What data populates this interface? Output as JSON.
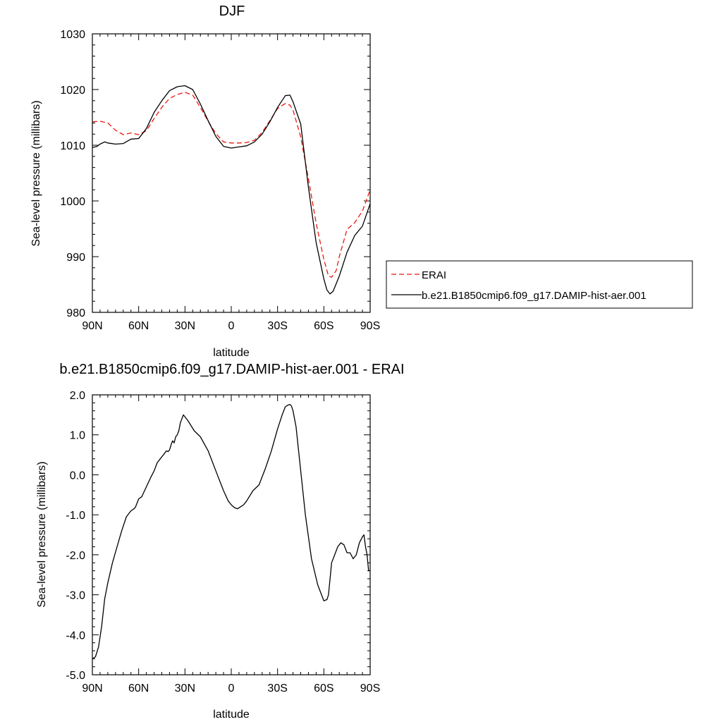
{
  "chart_data": [
    {
      "type": "line",
      "title": "DJF",
      "xlabel": "latitude",
      "ylabel": "Sea-level pressure (millibars)",
      "x_tick_labels": [
        "90N",
        "60N",
        "30N",
        "0",
        "30S",
        "60S",
        "90S"
      ],
      "y_tick_labels": [
        "980",
        "990",
        "1000",
        "1010",
        "1020",
        "1030"
      ],
      "xlim": [
        90,
        -90
      ],
      "ylim": [
        980,
        1030
      ],
      "legend": "right",
      "series": [
        {
          "name": "ERAI",
          "color": "#e8190f",
          "style": "dashed",
          "x": [
            90,
            85,
            80,
            75,
            70,
            65,
            60,
            55,
            50,
            45,
            40,
            35,
            30,
            25,
            20,
            15,
            10,
            5,
            0,
            -5,
            -10,
            -15,
            -20,
            -25,
            -30,
            -35,
            -38,
            -40,
            -45,
            -50,
            -55,
            -60,
            -63,
            -65,
            -68,
            -70,
            -75,
            -80,
            -85,
            -90
          ],
          "y": [
            1014.2,
            1014.3,
            1014.0,
            1012.7,
            1011.9,
            1012.2,
            1011.9,
            1012.6,
            1014.8,
            1016.8,
            1018.4,
            1019.1,
            1019.5,
            1019.0,
            1016.8,
            1014.3,
            1012.1,
            1010.6,
            1010.4,
            1010.4,
            1010.5,
            1010.9,
            1012.3,
            1014.4,
            1016.6,
            1017.5,
            1017.2,
            1016.3,
            1011.5,
            1004.0,
            996.0,
            989.5,
            986.5,
            986.3,
            987.5,
            990.0,
            994.9,
            996.1,
            998.2,
            1002.0
          ]
        },
        {
          "name": "b.e21.B1850cmip6.f09_g17.DAMIP-hist-aer.001",
          "color": "#000000",
          "style": "solid",
          "x": [
            90,
            87,
            85,
            82,
            80,
            75,
            70,
            65,
            60,
            55,
            50,
            45,
            40,
            35,
            30,
            25,
            20,
            15,
            10,
            5,
            0,
            -5,
            -10,
            -15,
            -20,
            -25,
            -30,
            -35,
            -38,
            -40,
            -45,
            -50,
            -55,
            -60,
            -62,
            -64,
            -66,
            -70,
            -75,
            -80,
            -85,
            -90
          ],
          "y": [
            1009.6,
            1009.8,
            1010.2,
            1010.6,
            1010.4,
            1010.2,
            1010.3,
            1011.1,
            1011.2,
            1013.0,
            1015.9,
            1018.0,
            1019.8,
            1020.5,
            1020.7,
            1020.0,
            1017.4,
            1014.4,
            1011.6,
            1009.8,
            1009.5,
            1009.7,
            1009.9,
            1010.6,
            1012.0,
            1014.2,
            1016.8,
            1018.9,
            1019.0,
            1017.8,
            1013.8,
            1002.5,
            992.5,
            986.0,
            984.0,
            983.3,
            983.8,
            986.5,
            990.8,
            993.8,
            995.5,
            999.5
          ]
        }
      ]
    },
    {
      "type": "line",
      "title": "b.e21.B1850cmip6.f09_g17.DAMIP-hist-aer.001 - ERAI",
      "xlabel": "latitude",
      "ylabel": "Sea-level pressure (millibars)",
      "x_tick_labels": [
        "90N",
        "60N",
        "30N",
        "0",
        "30S",
        "60S",
        "90S"
      ],
      "y_tick_labels": [
        "-5.0",
        "-4.0",
        "-3.0",
        "-2.0",
        "-1.0",
        "0.0",
        "1.0",
        "2.0"
      ],
      "xlim": [
        90,
        -90
      ],
      "ylim": [
        -5,
        2
      ],
      "series": [
        {
          "color": "#000000",
          "style": "solid",
          "x": [
            90,
            88,
            86,
            84,
            82,
            80,
            77,
            74,
            71,
            68,
            65,
            63,
            62,
            60,
            58,
            55,
            52,
            50,
            48,
            46,
            44,
            43,
            42,
            41,
            40,
            39,
            38,
            37,
            36,
            35,
            34,
            33,
            31,
            28,
            24,
            20,
            15,
            10,
            5,
            2,
            0,
            -2,
            -4,
            -6,
            -8,
            -10,
            -14,
            -18,
            -22,
            -26,
            -30,
            -33,
            -35,
            -37,
            -38,
            -39,
            -40,
            -42,
            -45,
            -48,
            -52,
            -56,
            -60,
            -62,
            -63,
            -64,
            -65,
            -67,
            -69,
            -71,
            -73,
            -75,
            -77,
            -79,
            -81,
            -83,
            -85,
            -86,
            -87,
            -88,
            -89,
            -90
          ],
          "y": [
            -4.6,
            -4.55,
            -4.3,
            -3.8,
            -3.1,
            -2.7,
            -2.2,
            -1.8,
            -1.4,
            -1.05,
            -0.9,
            -0.85,
            -0.8,
            -0.6,
            -0.55,
            -0.3,
            -0.05,
            0.1,
            0.3,
            0.4,
            0.5,
            0.55,
            0.6,
            0.58,
            0.62,
            0.75,
            0.85,
            0.8,
            0.95,
            1.0,
            1.1,
            1.3,
            1.5,
            1.35,
            1.1,
            0.95,
            0.6,
            0.1,
            -0.4,
            -0.65,
            -0.75,
            -0.82,
            -0.85,
            -0.8,
            -0.75,
            -0.65,
            -0.4,
            -0.25,
            0.15,
            0.6,
            1.15,
            1.5,
            1.7,
            1.75,
            1.76,
            1.72,
            1.6,
            1.2,
            0.1,
            -1.0,
            -2.1,
            -2.75,
            -3.15,
            -3.12,
            -3.0,
            -2.6,
            -2.2,
            -2.0,
            -1.8,
            -1.7,
            -1.75,
            -1.95,
            -1.95,
            -2.1,
            -2.0,
            -1.7,
            -1.55,
            -1.5,
            -1.8,
            -2.0,
            -2.4,
            -2.4
          ]
        }
      ]
    }
  ]
}
